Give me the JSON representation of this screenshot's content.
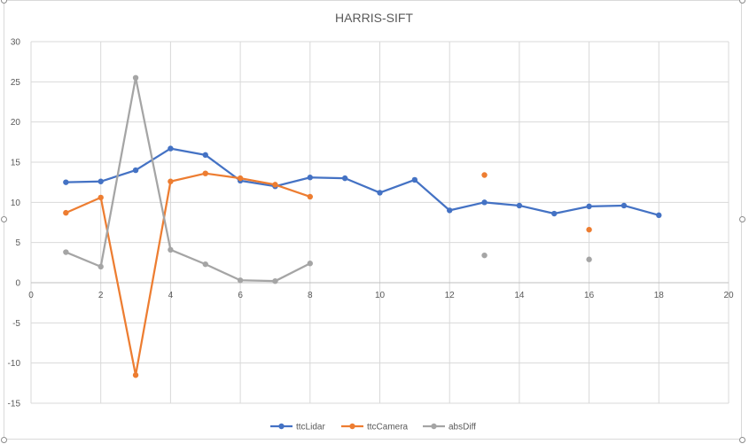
{
  "chart_data": {
    "type": "line",
    "title": "HARRIS-SIFT",
    "xlabel": "",
    "ylabel": "",
    "xlim": [
      0,
      20
    ],
    "ylim": [
      -15,
      30
    ],
    "xticks": [
      0,
      2,
      4,
      6,
      8,
      10,
      12,
      14,
      16,
      18,
      20
    ],
    "yticks": [
      -15,
      -10,
      -5,
      0,
      5,
      10,
      15,
      20,
      25,
      30
    ],
    "grid": true,
    "legend_position": "bottom",
    "series": [
      {
        "name": "ttcLidar",
        "color": "#4472c4",
        "points": [
          [
            1,
            12.5
          ],
          [
            2,
            12.6
          ],
          [
            3,
            14.0
          ],
          [
            4,
            16.7
          ],
          [
            5,
            15.9
          ],
          [
            6,
            12.7
          ],
          [
            7,
            12.0
          ],
          [
            8,
            13.1
          ],
          [
            9,
            13.0
          ],
          [
            10,
            11.2
          ],
          [
            11,
            12.8
          ],
          [
            12,
            9.0
          ],
          [
            13,
            10.0
          ],
          [
            14,
            9.6
          ],
          [
            15,
            8.6
          ],
          [
            16,
            9.5
          ],
          [
            17,
            9.6
          ],
          [
            18,
            8.4
          ]
        ]
      },
      {
        "name": "ttcCamera",
        "color": "#ed7d31",
        "points": [
          [
            1,
            8.7
          ],
          [
            2,
            10.6
          ],
          [
            3,
            -11.5
          ],
          [
            4,
            12.6
          ],
          [
            5,
            13.6
          ],
          [
            6,
            13.0
          ],
          [
            7,
            12.2
          ],
          [
            8,
            10.7
          ],
          [
            13,
            13.4
          ],
          [
            16,
            6.6
          ]
        ]
      },
      {
        "name": "absDiff",
        "color": "#a5a5a5",
        "points": [
          [
            1,
            3.8
          ],
          [
            2,
            2.0
          ],
          [
            3,
            25.5
          ],
          [
            4,
            4.1
          ],
          [
            5,
            2.3
          ],
          [
            6,
            0.3
          ],
          [
            7,
            0.2
          ],
          [
            8,
            2.4
          ],
          [
            13,
            3.4
          ],
          [
            16,
            2.9
          ]
        ]
      }
    ]
  }
}
